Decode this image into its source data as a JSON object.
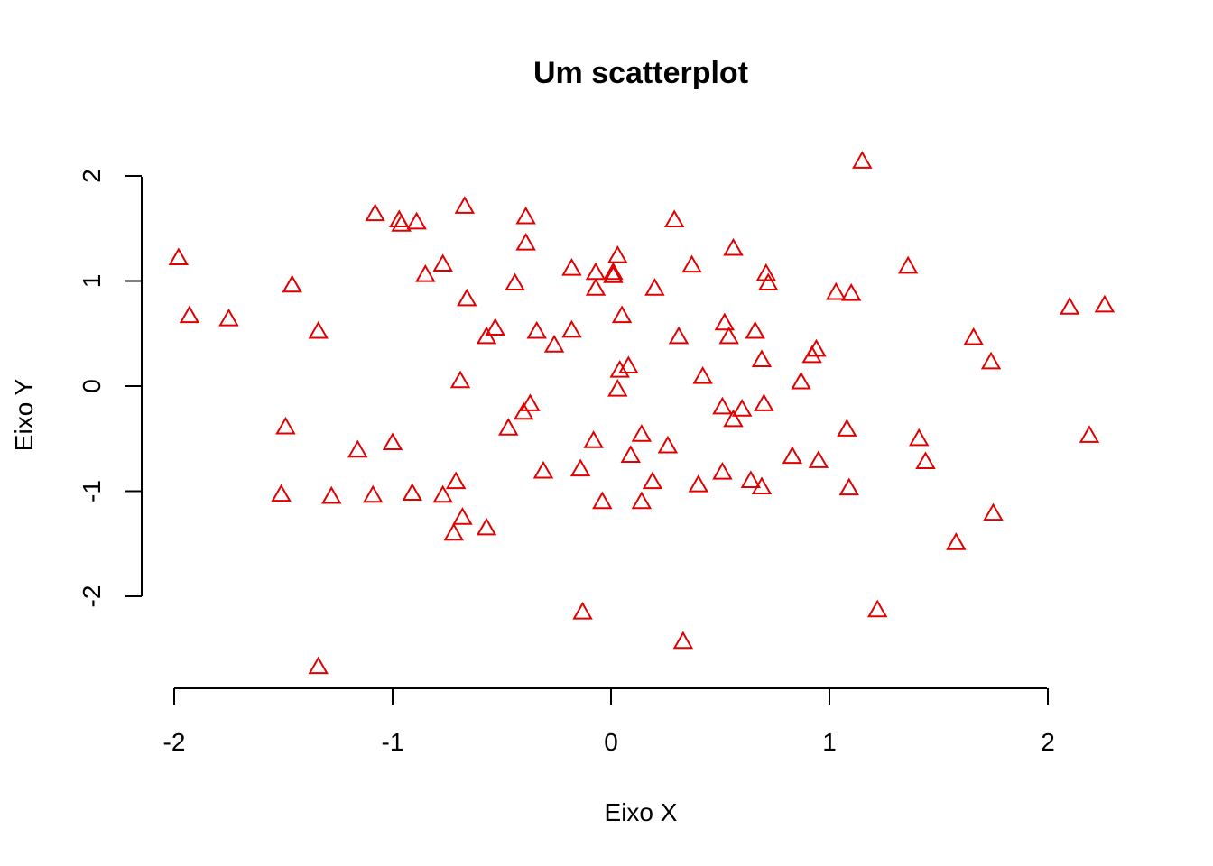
{
  "chart_data": {
    "type": "scatter",
    "title": "Um scatterplot",
    "xlabel": "Eixo X",
    "ylabel": "Eixo Y",
    "xlim": [
      -2.03,
      2.27
    ],
    "ylim": [
      -2.73,
      2.18
    ],
    "x_ticks": [
      -2,
      -1,
      0,
      1,
      2
    ],
    "y_ticks": [
      -2,
      -1,
      0,
      1,
      2
    ],
    "x_tick_labels": [
      "-2",
      "-1",
      "0",
      "1",
      "2"
    ],
    "y_tick_labels": [
      "-2",
      "-1",
      "0",
      "1",
      "2"
    ],
    "marker": "triangle-open",
    "marker_color": "#e00000",
    "grid": false,
    "points": [
      {
        "x": -1.98,
        "y": 1.22
      },
      {
        "x": -1.93,
        "y": 0.67
      },
      {
        "x": -1.75,
        "y": 0.64
      },
      {
        "x": -1.46,
        "y": 0.96
      },
      {
        "x": -1.34,
        "y": 0.52
      },
      {
        "x": -1.49,
        "y": -0.39
      },
      {
        "x": -1.51,
        "y": -1.03
      },
      {
        "x": -1.28,
        "y": -1.05
      },
      {
        "x": -1.16,
        "y": -0.61
      },
      {
        "x": -1.09,
        "y": -1.04
      },
      {
        "x": -1.0,
        "y": -0.54
      },
      {
        "x": -0.91,
        "y": -1.02
      },
      {
        "x": -0.77,
        "y": -1.04
      },
      {
        "x": -0.71,
        "y": -0.91
      },
      {
        "x": -0.68,
        "y": -1.25
      },
      {
        "x": -0.72,
        "y": -1.4
      },
      {
        "x": -0.57,
        "y": -1.35
      },
      {
        "x": -1.34,
        "y": -2.67
      },
      {
        "x": -1.08,
        "y": 1.64
      },
      {
        "x": -0.97,
        "y": 1.58
      },
      {
        "x": -0.96,
        "y": 1.54
      },
      {
        "x": -0.89,
        "y": 1.56
      },
      {
        "x": -0.85,
        "y": 1.06
      },
      {
        "x": -0.77,
        "y": 1.16
      },
      {
        "x": -0.67,
        "y": 1.71
      },
      {
        "x": -0.66,
        "y": 0.83
      },
      {
        "x": -0.69,
        "y": 0.05
      },
      {
        "x": -0.57,
        "y": 0.47
      },
      {
        "x": -0.53,
        "y": 0.55
      },
      {
        "x": -0.44,
        "y": 0.98
      },
      {
        "x": -0.39,
        "y": 1.61
      },
      {
        "x": -0.39,
        "y": 1.36
      },
      {
        "x": -0.34,
        "y": 0.52
      },
      {
        "x": -0.26,
        "y": 0.39
      },
      {
        "x": -0.18,
        "y": 1.12
      },
      {
        "x": -0.18,
        "y": 0.53
      },
      {
        "x": -0.37,
        "y": -0.17
      },
      {
        "x": -0.4,
        "y": -0.25
      },
      {
        "x": -0.47,
        "y": -0.4
      },
      {
        "x": -0.31,
        "y": -0.81
      },
      {
        "x": -0.14,
        "y": -0.79
      },
      {
        "x": -0.08,
        "y": -0.52
      },
      {
        "x": -0.04,
        "y": -1.1
      },
      {
        "x": -0.13,
        "y": -2.15
      },
      {
        "x": -0.07,
        "y": 1.08
      },
      {
        "x": -0.07,
        "y": 0.93
      },
      {
        "x": 0.01,
        "y": 1.05
      },
      {
        "x": 0.01,
        "y": 1.08
      },
      {
        "x": 0.03,
        "y": 1.24
      },
      {
        "x": 0.05,
        "y": 0.67
      },
      {
        "x": 0.04,
        "y": 0.15
      },
      {
        "x": 0.08,
        "y": 0.19
      },
      {
        "x": 0.03,
        "y": -0.03
      },
      {
        "x": 0.09,
        "y": -0.66
      },
      {
        "x": 0.14,
        "y": -0.46
      },
      {
        "x": 0.14,
        "y": -1.1
      },
      {
        "x": 0.19,
        "y": -0.91
      },
      {
        "x": 0.2,
        "y": 0.93
      },
      {
        "x": 0.26,
        "y": -0.57
      },
      {
        "x": 0.29,
        "y": 1.58
      },
      {
        "x": 0.31,
        "y": 0.47
      },
      {
        "x": 0.37,
        "y": 1.15
      },
      {
        "x": 0.42,
        "y": 0.09
      },
      {
        "x": 0.4,
        "y": -0.94
      },
      {
        "x": 0.33,
        "y": -2.43
      },
      {
        "x": 0.51,
        "y": -0.82
      },
      {
        "x": 0.51,
        "y": -0.2
      },
      {
        "x": 0.52,
        "y": 0.6
      },
      {
        "x": 0.54,
        "y": 0.47
      },
      {
        "x": 0.56,
        "y": 1.31
      },
      {
        "x": 0.56,
        "y": -0.32
      },
      {
        "x": 0.6,
        "y": -0.22
      },
      {
        "x": 0.66,
        "y": 0.52
      },
      {
        "x": 0.64,
        "y": -0.9
      },
      {
        "x": 0.69,
        "y": -0.96
      },
      {
        "x": 0.69,
        "y": 0.25
      },
      {
        "x": 0.7,
        "y": -0.17
      },
      {
        "x": 0.71,
        "y": 1.07
      },
      {
        "x": 0.72,
        "y": 0.98
      },
      {
        "x": 0.83,
        "y": -0.67
      },
      {
        "x": 0.87,
        "y": 0.04
      },
      {
        "x": 0.92,
        "y": 0.29
      },
      {
        "x": 0.94,
        "y": 0.35
      },
      {
        "x": 0.95,
        "y": -0.71
      },
      {
        "x": 1.03,
        "y": 0.89
      },
      {
        "x": 1.1,
        "y": 0.88
      },
      {
        "x": 1.08,
        "y": -0.41
      },
      {
        "x": 1.09,
        "y": -0.97
      },
      {
        "x": 1.15,
        "y": 2.14
      },
      {
        "x": 1.22,
        "y": -2.13
      },
      {
        "x": 1.36,
        "y": 1.14
      },
      {
        "x": 1.41,
        "y": -0.5
      },
      {
        "x": 1.44,
        "y": -0.72
      },
      {
        "x": 1.58,
        "y": -1.49
      },
      {
        "x": 1.66,
        "y": 0.46
      },
      {
        "x": 1.74,
        "y": 0.23
      },
      {
        "x": 1.75,
        "y": -1.21
      },
      {
        "x": 2.1,
        "y": 0.75
      },
      {
        "x": 2.19,
        "y": -0.47
      },
      {
        "x": 2.26,
        "y": 0.77
      }
    ]
  }
}
